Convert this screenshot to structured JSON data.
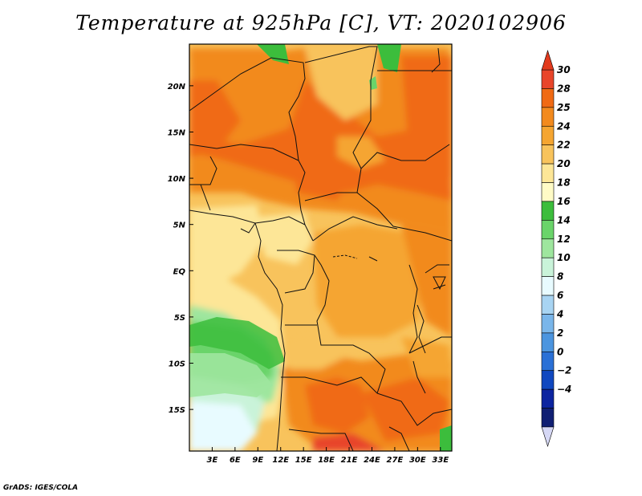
{
  "title": "Temperature at 925hPa [C], VT: 2020102906",
  "credit": "GrADS: IGES/COLA",
  "map": {
    "lon_range": [
      0,
      34.5
    ],
    "lat_range": [
      -19.5,
      24.5
    ],
    "x_ticks": [
      {
        "value": 3,
        "label": "3E"
      },
      {
        "value": 6,
        "label": "6E"
      },
      {
        "value": 9,
        "label": "9E"
      },
      {
        "value": 12,
        "label": "12E"
      },
      {
        "value": 15,
        "label": "15E"
      },
      {
        "value": 18,
        "label": "18E"
      },
      {
        "value": 21,
        "label": "21E"
      },
      {
        "value": 24,
        "label": "24E"
      },
      {
        "value": 27,
        "label": "27E"
      },
      {
        "value": 30,
        "label": "30E"
      },
      {
        "value": 33,
        "label": "33E"
      }
    ],
    "y_ticks": [
      {
        "value": 20,
        "label": "20N"
      },
      {
        "value": 15,
        "label": "15N"
      },
      {
        "value": 10,
        "label": "10N"
      },
      {
        "value": 5,
        "label": "5N"
      },
      {
        "value": 0,
        "label": "EQ"
      },
      {
        "value": -5,
        "label": "5S"
      },
      {
        "value": -10,
        "label": "10S"
      },
      {
        "value": -15,
        "label": "15S"
      }
    ]
  },
  "colorbar": {
    "levels": [
      "30",
      "28",
      "25",
      "24",
      "22",
      "20",
      "18",
      "16",
      "14",
      "12",
      "10",
      "8",
      "6",
      "4",
      "2",
      "0",
      "−2",
      "−4"
    ],
    "colors": [
      "#e8452a",
      "#f06a14",
      "#f28a1e",
      "#f5a531",
      "#f8c35c",
      "#fde697",
      "#fffbc6",
      "#3cbd3c",
      "#6ad46a",
      "#9ee69e",
      "#c9f3d9",
      "#e8fbff",
      "#a8d4f2",
      "#7ab6ea",
      "#4c95df",
      "#2a70d6",
      "#1048c0",
      "#0c24a0",
      "#101f73"
    ],
    "top_color": "#e23a1d",
    "bottom_color": "#d6d8f5"
  }
}
